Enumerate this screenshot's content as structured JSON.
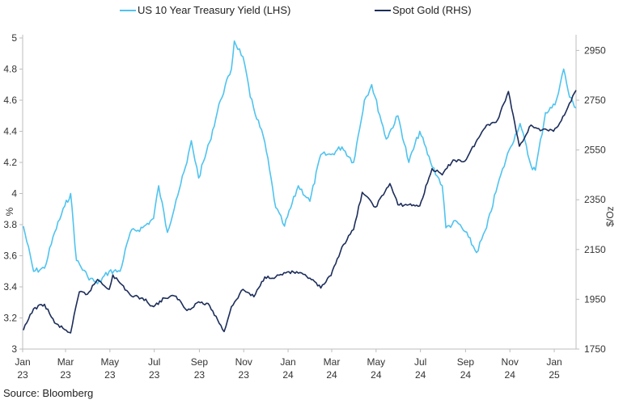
{
  "chart_data": {
    "type": "line",
    "legend_position": "top",
    "grid": false,
    "x_ticks": [
      {
        "month": "Jan",
        "year": "23",
        "date": "2023-01-01"
      },
      {
        "month": "Mar",
        "year": "23",
        "date": "2023-03-01"
      },
      {
        "month": "May",
        "year": "23",
        "date": "2023-05-01"
      },
      {
        "month": "Jul",
        "year": "23",
        "date": "2023-07-01"
      },
      {
        "month": "Sep",
        "year": "23",
        "date": "2023-09-01"
      },
      {
        "month": "Nov",
        "year": "23",
        "date": "2023-11-01"
      },
      {
        "month": "Jan",
        "year": "24",
        "date": "2024-01-01"
      },
      {
        "month": "Mar",
        "year": "24",
        "date": "2024-03-01"
      },
      {
        "month": "May",
        "year": "24",
        "date": "2024-05-01"
      },
      {
        "month": "Jul",
        "year": "24",
        "date": "2024-07-01"
      },
      {
        "month": "Sep",
        "year": "24",
        "date": "2024-09-01"
      },
      {
        "month": "Nov",
        "year": "24",
        "date": "2024-11-01"
      },
      {
        "month": "Jan",
        "year": "25",
        "date": "2025-01-01"
      }
    ],
    "x_range": [
      "2023-01-01",
      "2025-01-31"
    ],
    "left_axis": {
      "label": "%",
      "ylim": [
        3,
        5
      ],
      "ticks": [
        "3",
        "3.2",
        "3.4",
        "3.6",
        "3.8",
        "4",
        "4.2",
        "4.4",
        "4.6",
        "4.8",
        "5"
      ]
    },
    "right_axis": {
      "label": "$/Oz",
      "ylim": [
        1750,
        3000
      ],
      "ticks": [
        "1750",
        "1950",
        "2150",
        "2350",
        "2550",
        "2750",
        "2950"
      ]
    },
    "series": [
      {
        "name": "US 10 Year Treasury Yield (LHS)",
        "axis": "left",
        "color": "#4fc3ef",
        "points": [
          [
            "2023-01-02",
            3.79
          ],
          [
            "2023-01-16",
            3.5
          ],
          [
            "2023-01-31",
            3.52
          ],
          [
            "2023-02-14",
            3.75
          ],
          [
            "2023-02-28",
            3.92
          ],
          [
            "2023-03-08",
            4.0
          ],
          [
            "2023-03-16",
            3.57
          ],
          [
            "2023-03-31",
            3.47
          ],
          [
            "2023-04-14",
            3.42
          ],
          [
            "2023-04-30",
            3.5
          ],
          [
            "2023-05-15",
            3.5
          ],
          [
            "2023-05-29",
            3.75
          ],
          [
            "2023-06-15",
            3.78
          ],
          [
            "2023-06-30",
            3.84
          ],
          [
            "2023-07-07",
            4.05
          ],
          [
            "2023-07-19",
            3.75
          ],
          [
            "2023-07-31",
            3.96
          ],
          [
            "2023-08-15",
            4.2
          ],
          [
            "2023-08-21",
            4.34
          ],
          [
            "2023-08-31",
            4.1
          ],
          [
            "2023-09-15",
            4.33
          ],
          [
            "2023-09-30",
            4.6
          ],
          [
            "2023-10-15",
            4.8
          ],
          [
            "2023-10-19",
            4.98
          ],
          [
            "2023-10-31",
            4.88
          ],
          [
            "2023-11-10",
            4.62
          ],
          [
            "2023-11-30",
            4.33
          ],
          [
            "2023-12-15",
            3.91
          ],
          [
            "2023-12-27",
            3.79
          ],
          [
            "2024-01-15",
            4.05
          ],
          [
            "2024-01-31",
            3.95
          ],
          [
            "2024-02-15",
            4.25
          ],
          [
            "2024-02-29",
            4.25
          ],
          [
            "2024-03-15",
            4.3
          ],
          [
            "2024-03-31",
            4.2
          ],
          [
            "2024-04-15",
            4.6
          ],
          [
            "2024-04-25",
            4.7
          ],
          [
            "2024-05-15",
            4.35
          ],
          [
            "2024-05-31",
            4.5
          ],
          [
            "2024-06-15",
            4.2
          ],
          [
            "2024-06-30",
            4.4
          ],
          [
            "2024-07-15",
            4.2
          ],
          [
            "2024-07-31",
            4.05
          ],
          [
            "2024-08-05",
            3.78
          ],
          [
            "2024-08-20",
            3.82
          ],
          [
            "2024-09-05",
            3.72
          ],
          [
            "2024-09-16",
            3.62
          ],
          [
            "2024-09-30",
            3.78
          ],
          [
            "2024-10-15",
            4.05
          ],
          [
            "2024-10-31",
            4.28
          ],
          [
            "2024-11-15",
            4.45
          ],
          [
            "2024-11-30",
            4.18
          ],
          [
            "2024-12-06",
            4.15
          ],
          [
            "2024-12-20",
            4.52
          ],
          [
            "2025-01-02",
            4.57
          ],
          [
            "2025-01-14",
            4.8
          ],
          [
            "2025-01-22",
            4.62
          ],
          [
            "2025-01-31",
            4.55
          ]
        ]
      },
      {
        "name": "Spot Gold (RHS)",
        "axis": "right",
        "color": "#1c2d5a",
        "points": [
          [
            "2023-01-02",
            1826
          ],
          [
            "2023-01-16",
            1912
          ],
          [
            "2023-01-31",
            1930
          ],
          [
            "2023-02-14",
            1855
          ],
          [
            "2023-02-28",
            1828
          ],
          [
            "2023-03-08",
            1815
          ],
          [
            "2023-03-20",
            1980
          ],
          [
            "2023-03-31",
            1970
          ],
          [
            "2023-04-14",
            2030
          ],
          [
            "2023-04-30",
            1990
          ],
          [
            "2023-05-05",
            2048
          ],
          [
            "2023-05-15",
            2015
          ],
          [
            "2023-05-31",
            1962
          ],
          [
            "2023-06-15",
            1955
          ],
          [
            "2023-06-30",
            1920
          ],
          [
            "2023-07-15",
            1955
          ],
          [
            "2023-07-31",
            1962
          ],
          [
            "2023-08-15",
            1905
          ],
          [
            "2023-08-31",
            1940
          ],
          [
            "2023-09-15",
            1925
          ],
          [
            "2023-10-05",
            1820
          ],
          [
            "2023-10-15",
            1920
          ],
          [
            "2023-10-31",
            1990
          ],
          [
            "2023-11-15",
            1960
          ],
          [
            "2023-11-30",
            2040
          ],
          [
            "2023-12-15",
            2040
          ],
          [
            "2023-12-31",
            2060
          ],
          [
            "2024-01-15",
            2055
          ],
          [
            "2024-01-31",
            2035
          ],
          [
            "2024-02-15",
            1995
          ],
          [
            "2024-02-29",
            2045
          ],
          [
            "2024-03-15",
            2160
          ],
          [
            "2024-03-31",
            2230
          ],
          [
            "2024-04-12",
            2380
          ],
          [
            "2024-04-30",
            2320
          ],
          [
            "2024-05-20",
            2415
          ],
          [
            "2024-05-31",
            2330
          ],
          [
            "2024-06-15",
            2330
          ],
          [
            "2024-06-30",
            2325
          ],
          [
            "2024-07-17",
            2475
          ],
          [
            "2024-07-31",
            2450
          ],
          [
            "2024-08-15",
            2510
          ],
          [
            "2024-08-31",
            2505
          ],
          [
            "2024-09-15",
            2580
          ],
          [
            "2024-09-30",
            2650
          ],
          [
            "2024-10-15",
            2670
          ],
          [
            "2024-10-30",
            2785
          ],
          [
            "2024-11-14",
            2565
          ],
          [
            "2024-11-30",
            2650
          ],
          [
            "2024-12-15",
            2630
          ],
          [
            "2024-12-31",
            2625
          ],
          [
            "2025-01-15",
            2690
          ],
          [
            "2025-01-31",
            2790
          ]
        ]
      }
    ]
  },
  "source": "Source: Bloomberg"
}
